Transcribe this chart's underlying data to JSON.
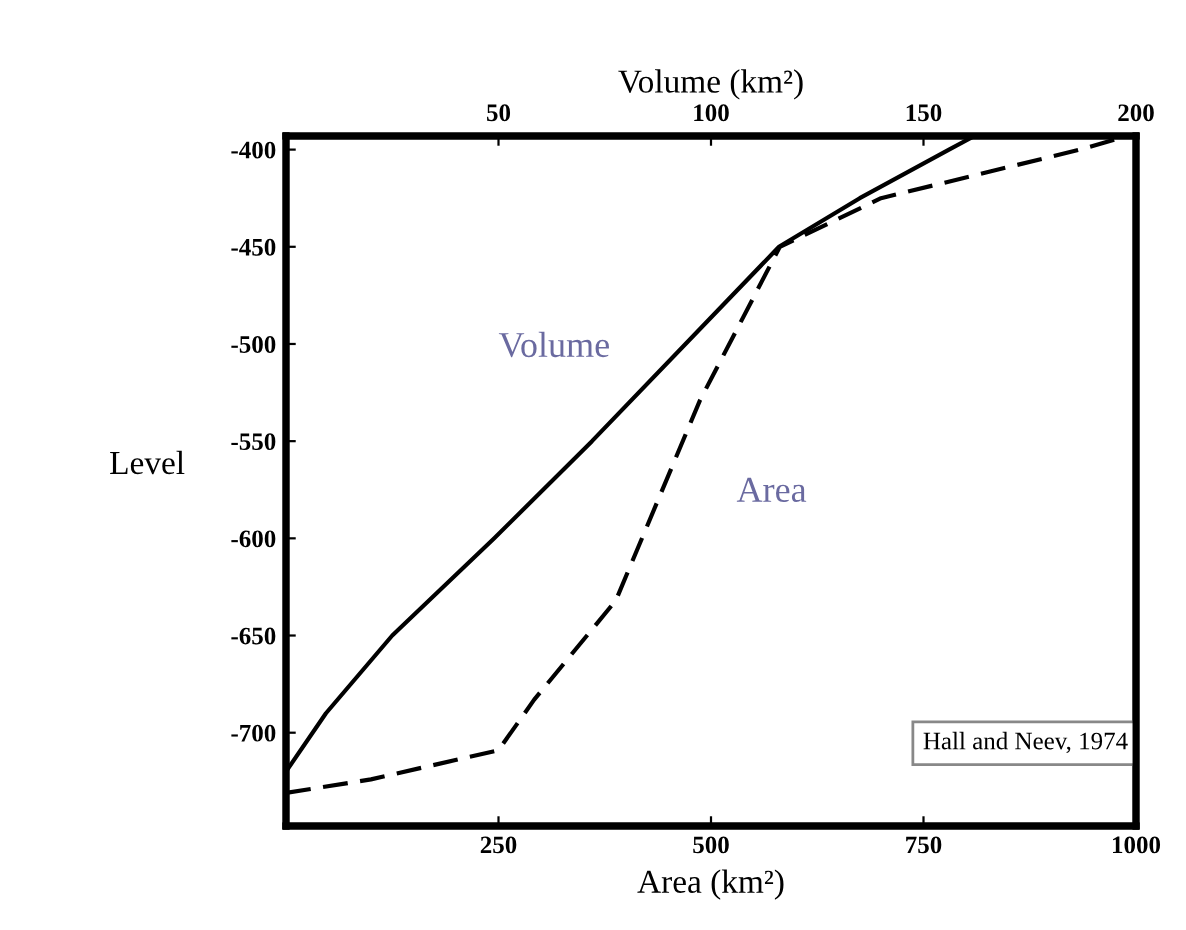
{
  "chart_data": {
    "type": "line",
    "xlabel": "Area (km²)",
    "x2label": "Volume (km²)",
    "ylabel": "Level",
    "xlim": [
      0,
      1000
    ],
    "xticks": [
      250,
      500,
      750,
      1000
    ],
    "x2lim": [
      0,
      200
    ],
    "x2ticks": [
      50,
      100,
      150,
      200
    ],
    "ylim": [
      -748,
      -393
    ],
    "yticks": [
      -400,
      -450,
      -500,
      -550,
      -600,
      -650,
      -700
    ],
    "grid": false,
    "legend": false,
    "marker": "none",
    "series": [
      {
        "name": "Volume",
        "color": "#000000",
        "axis": "x2",
        "line_style": "solid",
        "x": [
          0,
          9.4,
          25,
          49,
          72,
          94,
          116,
          135,
          156,
          162
        ],
        "values": [
          -720,
          -690,
          -650,
          -600,
          -550,
          -500,
          -450,
          -425,
          -400,
          -393
        ]
      },
      {
        "name": "Area",
        "color": "#000000",
        "line_style": "dashed",
        "x": [
          0,
          100,
          250,
          292,
          388,
          487,
          581,
          700,
          934,
          990
        ],
        "values": [
          -731,
          -724,
          -709,
          -683,
          -632,
          -529,
          -450,
          -425,
          -400,
          -393
        ]
      }
    ],
    "annotations": [
      "Hall and Neev, 1974"
    ]
  }
}
